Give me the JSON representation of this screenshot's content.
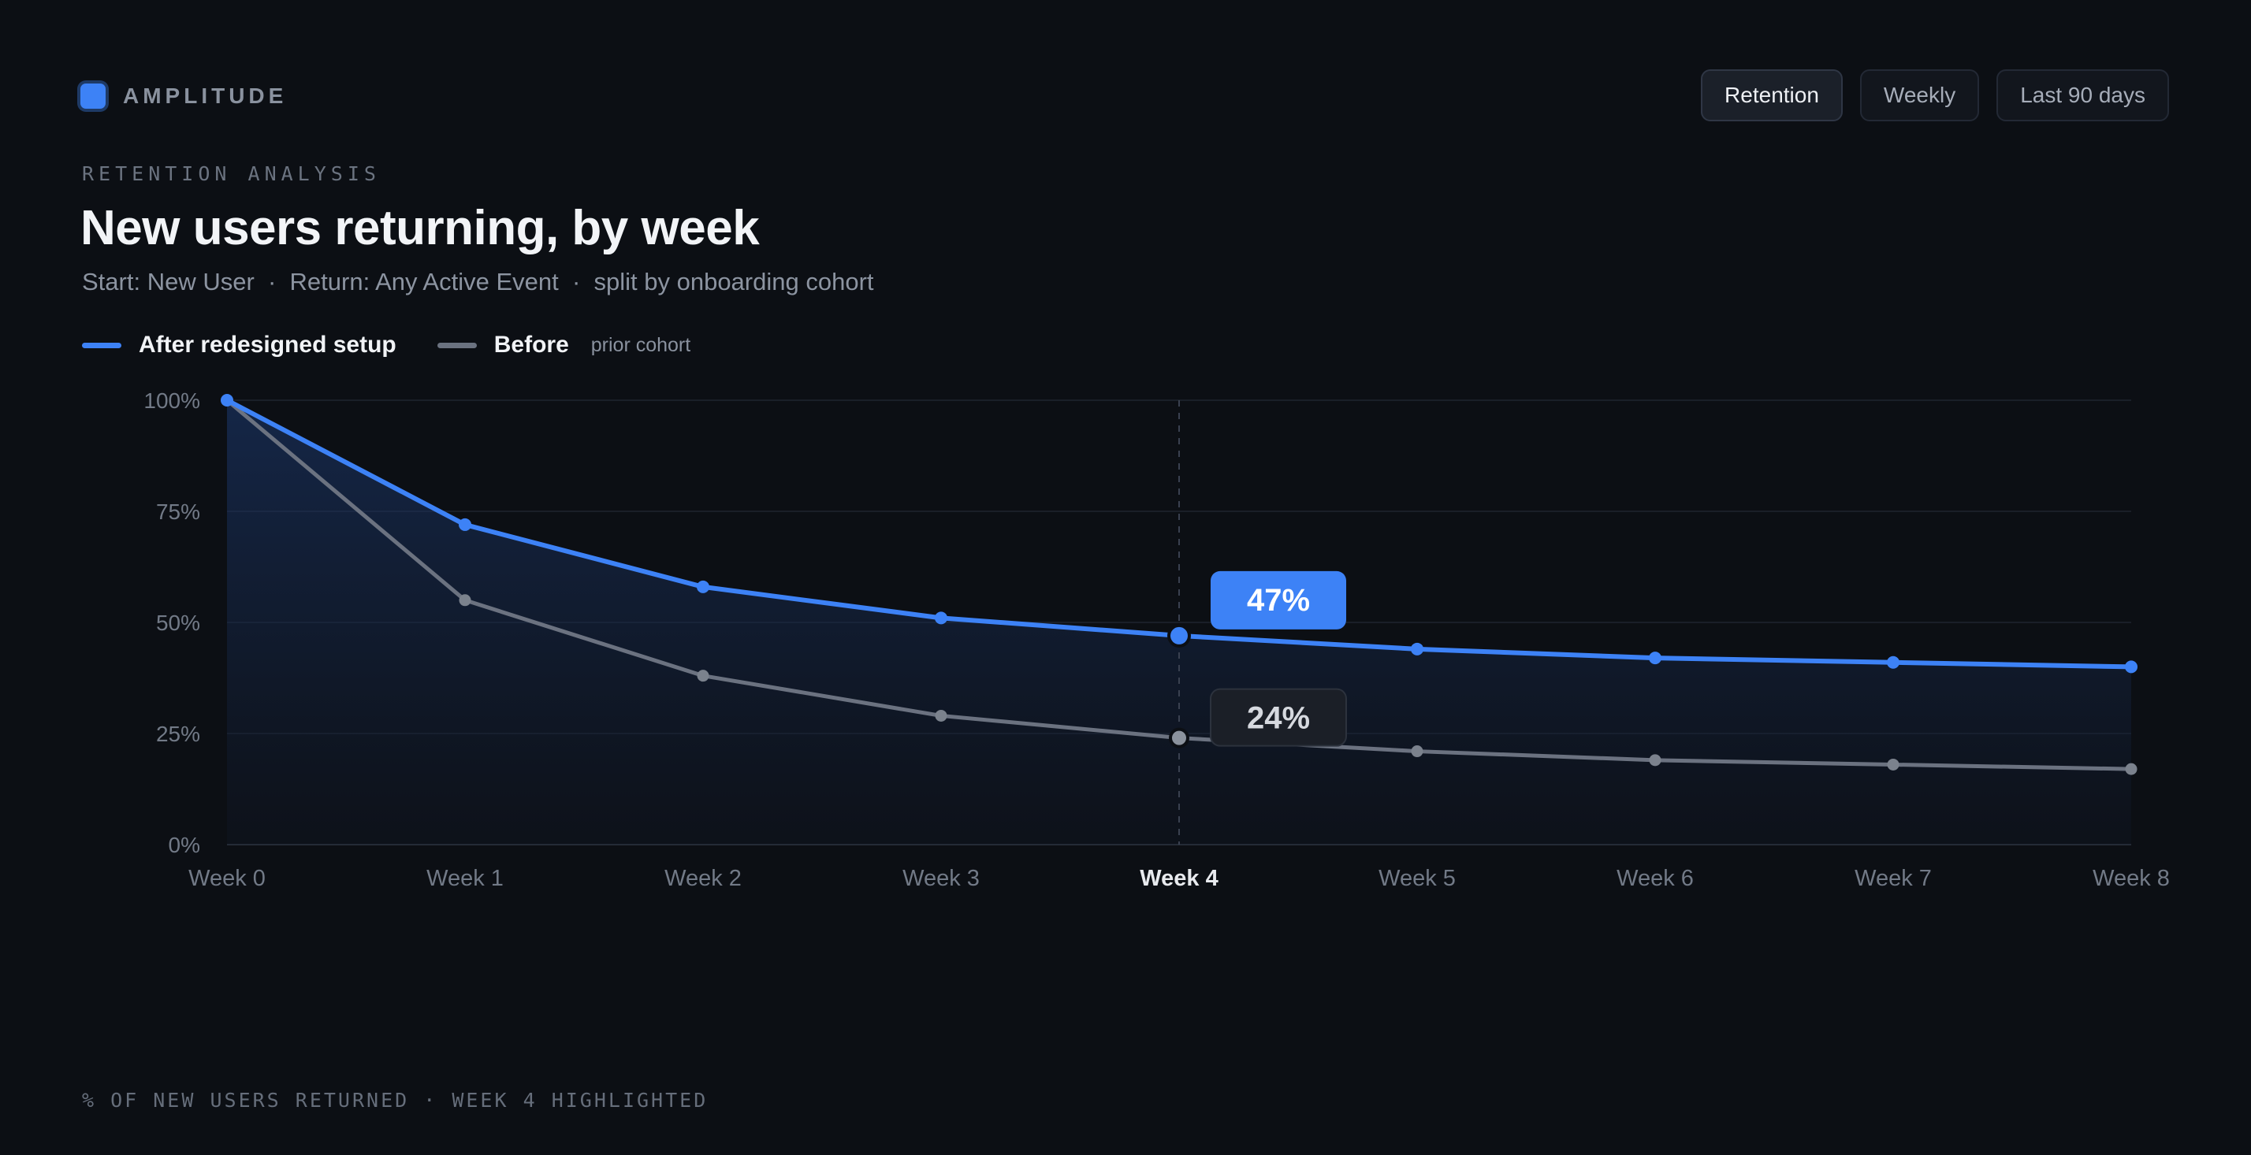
{
  "brand": {
    "name": "AMPLITUDE"
  },
  "controls": [
    {
      "label": "Retention",
      "active": true
    },
    {
      "label": "Weekly",
      "active": false
    },
    {
      "label": "Last 90 days",
      "active": false
    }
  ],
  "header": {
    "eyebrow": "RETENTION ANALYSIS",
    "title": "New users returning, by week",
    "subtitle": "Start: New User  ·  Return: Any Active Event  ·  split by onboarding cohort"
  },
  "legend": {
    "after_label": "After redesigned setup",
    "before_label": "Before",
    "before_note": "prior cohort"
  },
  "footer": {
    "text": "% OF NEW USERS RETURNED · WEEK 4 HIGHLIGHTED"
  },
  "colors": {
    "after": "#3d82f6",
    "before": "#6b7280",
    "background": "#0c0f14"
  },
  "chart_data": {
    "type": "line",
    "x": [
      "Week 0",
      "Week 1",
      "Week 2",
      "Week 3",
      "Week 4",
      "Week 5",
      "Week 6",
      "Week 7",
      "Week 8"
    ],
    "series": [
      {
        "name": "After redesigned setup",
        "values": [
          100,
          72,
          58,
          51,
          47,
          44,
          42,
          41,
          40
        ]
      },
      {
        "name": "Before",
        "values": [
          100,
          55,
          38,
          29,
          24,
          21,
          19,
          18,
          17
        ]
      }
    ],
    "ylim": [
      0,
      100
    ],
    "yticks": [
      "0%",
      "25%",
      "50%",
      "75%",
      "100%"
    ],
    "highlight_index": 4,
    "highlight_labels": {
      "after": "47%",
      "before": "24%"
    },
    "grid": true
  }
}
